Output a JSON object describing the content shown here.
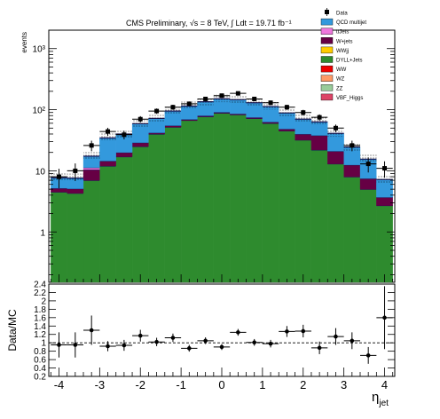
{
  "chart_data": [
    {
      "type": "bar",
      "subtype": "stacked-histogram",
      "title": "CMS Preliminary, √s = 8 TeV, ∫ Ldt = 19.71 fb⁻¹",
      "ylabel": "events",
      "yscale": "log",
      "ylim": [
        0.15,
        2000
      ],
      "xlim": [
        -4.25,
        4.25
      ],
      "y_tick_labels": [
        "1",
        "10",
        "10²",
        "10³"
      ],
      "legend_position": "top-right",
      "x_bin_centers": [
        -4.0,
        -3.6,
        -3.2,
        -2.8,
        -2.4,
        -2.0,
        -1.6,
        -1.2,
        -0.8,
        -0.4,
        0.0,
        0.4,
        0.8,
        1.2,
        1.6,
        2.0,
        2.4,
        2.8,
        3.2,
        3.6,
        4.0
      ],
      "bin_half_width": 0.2,
      "series": [
        {
          "name": "DYLL+Jets",
          "color": "#2e8b2e",
          "values": [
            4.5,
            4.3,
            7,
            12,
            17,
            25,
            40,
            52,
            67,
            77,
            88,
            83,
            72,
            60,
            45,
            32,
            22,
            13,
            8,
            5,
            2.7
          ]
        },
        {
          "name": "W+jets",
          "color": "#660044",
          "values": [
            0.7,
            0.8,
            3.5,
            2.5,
            3,
            4,
            2,
            3,
            2.5,
            3,
            3,
            3,
            3,
            3,
            3.5,
            8,
            16,
            8,
            4.5,
            2.5,
            1.0
          ]
        },
        {
          "name": "ttJets",
          "color": "#ee77dd",
          "values": [
            0,
            0,
            0.8,
            0,
            0,
            0,
            0,
            0,
            0,
            0,
            0,
            0,
            0,
            0,
            0,
            0,
            0,
            0,
            0,
            0,
            0
          ]
        },
        {
          "name": "QCD multijet",
          "color": "#3399dd",
          "values": [
            2.5,
            2.5,
            6,
            20,
            20,
            30,
            30,
            40,
            45,
            55,
            60,
            60,
            55,
            50,
            40,
            30,
            25,
            20,
            12,
            8,
            3.5
          ]
        },
        {
          "name": "WWjj",
          "color": "#ffcc00",
          "values": [
            0,
            0,
            0,
            0,
            0,
            0,
            0,
            0,
            0,
            0,
            0,
            0,
            0,
            0,
            0,
            0,
            0,
            0,
            0,
            0,
            0
          ]
        },
        {
          "name": "WW",
          "color": "#ee0000",
          "values": [
            0,
            0,
            0,
            0,
            0,
            0,
            0,
            0,
            0,
            0,
            0,
            0,
            0,
            0,
            0,
            0,
            0,
            0,
            0,
            0,
            0
          ]
        },
        {
          "name": "WZ",
          "color": "#ff9966",
          "values": [
            0,
            0,
            0,
            0,
            0,
            0,
            0,
            0,
            0,
            0,
            0,
            0,
            0,
            0,
            0,
            0,
            0,
            0,
            0,
            0,
            0
          ]
        },
        {
          "name": "ZZ",
          "color": "#99cc99",
          "values": [
            0,
            0,
            0,
            0,
            0,
            0,
            0,
            0,
            0,
            0,
            0,
            0,
            0,
            0,
            0,
            0,
            0,
            0,
            0,
            0,
            0
          ]
        },
        {
          "name": "VBF_Higgs",
          "color": "#dd4466",
          "values": [
            0,
            0,
            0,
            0,
            0,
            0,
            0,
            0,
            0,
            0,
            0,
            0,
            0,
            0,
            0,
            0,
            0,
            0,
            0,
            0,
            0
          ]
        }
      ],
      "data": {
        "name": "Data",
        "values": [
          8,
          10,
          26,
          44,
          39,
          70,
          95,
          110,
          125,
          150,
          170,
          185,
          150,
          130,
          110,
          90,
          75,
          50,
          26,
          13,
          11
        ],
        "errors": [
          2.8,
          3.2,
          5.1,
          6.6,
          6.2,
          8.4,
          9.7,
          10.5,
          11.2,
          12.2,
          13,
          13.6,
          12.2,
          11.4,
          10.5,
          9.5,
          8.7,
          7.1,
          5.1,
          3.6,
          3.3
        ]
      },
      "legend": [
        "Data",
        "QCD multijet",
        "ttJets",
        "W+jets",
        "WWjj",
        "DYLL+Jets",
        "WW",
        "WZ",
        "ZZ",
        "VBF_Higgs"
      ]
    },
    {
      "type": "scatter",
      "ylabel": "Data/MC",
      "xlabel": "η",
      "xlabel_sub": "jet",
      "ylim": [
        0.2,
        2.4
      ],
      "xlim": [
        -4.25,
        4.25
      ],
      "reference_line": 1.0,
      "x_ticks": [
        -4,
        -3,
        -2,
        -1,
        0,
        1,
        2,
        3,
        4
      ],
      "y_ticks": [
        0.2,
        0.4,
        0.6,
        0.8,
        1,
        1.2,
        1.4,
        1.6,
        1.8,
        2,
        2.2,
        2.4
      ],
      "x": [
        -4.0,
        -3.6,
        -3.2,
        -2.8,
        -2.4,
        -2.0,
        -1.6,
        -1.2,
        -0.8,
        -0.4,
        0.0,
        0.4,
        0.8,
        1.2,
        1.6,
        2.0,
        2.4,
        2.8,
        3.2,
        3.6,
        4.0
      ],
      "y": [
        0.95,
        0.95,
        1.3,
        0.92,
        0.94,
        1.17,
        1.02,
        1.12,
        0.87,
        1.05,
        0.9,
        1.25,
        1.01,
        0.98,
        1.27,
        1.28,
        0.88,
        1.15,
        1.05,
        0.7,
        1.6
      ],
      "yerr": [
        0.3,
        0.3,
        0.35,
        0.12,
        0.13,
        0.14,
        0.1,
        0.1,
        0.08,
        0.08,
        0.07,
        0.08,
        0.08,
        0.09,
        0.13,
        0.15,
        0.15,
        0.2,
        0.2,
        0.2,
        0.75
      ]
    }
  ]
}
